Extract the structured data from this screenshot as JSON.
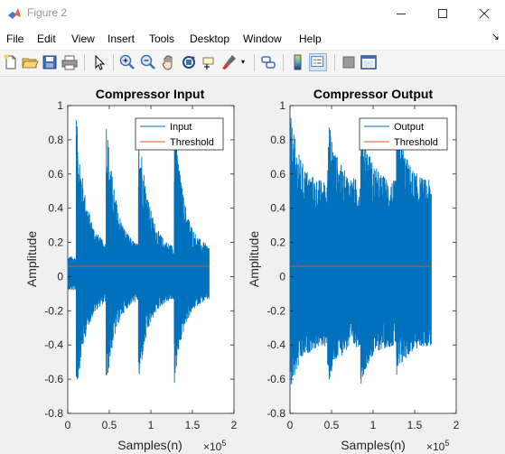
{
  "window": {
    "title": "Figure 2"
  },
  "menu": [
    "File",
    "Edit",
    "View",
    "Insert",
    "Tools",
    "Desktop",
    "Window",
    "Help"
  ],
  "toolbar": {
    "icons": [
      "new-figure-icon",
      "open-file-icon",
      "save-icon",
      "print-icon",
      "pointer-icon",
      "zoom-in-icon",
      "zoom-out-icon",
      "pan-icon",
      "rotate-icon",
      "data-cursor-icon",
      "brush-icon",
      "link-icon",
      "colorbar-icon",
      "legend-icon",
      "hide-plot-tools-icon",
      "show-plot-tools-icon"
    ]
  },
  "colors": {
    "series": "#0072bd",
    "threshold": "#d95319",
    "background": "#f0f0f0"
  },
  "chart_data": [
    {
      "type": "line",
      "title": "Compressor Input",
      "xlabel": "Samples(n)",
      "ylabel": "Amplitude",
      "x_exponent": "×10",
      "x_exponent_power": "5",
      "xlim": [
        0,
        2
      ],
      "ylim": [
        -0.8,
        1
      ],
      "xticks": [
        "0",
        "0.5",
        "1",
        "1.5",
        "2"
      ],
      "yticks": [
        "-0.8",
        "-0.6",
        "-0.4",
        "-0.2",
        "0",
        "0.2",
        "0.4",
        "0.6",
        "0.8",
        "1"
      ],
      "legend_position": "top-right",
      "series": [
        {
          "name": "Input",
          "x_end": 1.7,
          "burst_starts": [
            0.1,
            0.46,
            0.85,
            1.28
          ],
          "burst_peak_pos": [
            0.97,
            0.97,
            0.97,
            0.97
          ],
          "burst_peak_neg": [
            -0.72,
            -0.68,
            -0.66,
            -0.65
          ],
          "decay_floor_pos": 0.16,
          "decay_floor_neg": -0.12
        },
        {
          "name": "Threshold",
          "x": [
            0,
            1.7
          ],
          "y": [
            0.06,
            0.06
          ]
        }
      ]
    },
    {
      "type": "line",
      "title": "Compressor Output",
      "xlabel": "Samples(n)",
      "ylabel": "Amplitude",
      "x_exponent": "×10",
      "x_exponent_power": "5",
      "xlim": [
        0,
        2
      ],
      "ylim": [
        -0.8,
        1
      ],
      "xticks": [
        "0",
        "0.5",
        "1",
        "1.5",
        "2"
      ],
      "yticks": [
        "-0.8",
        "-0.6",
        "-0.4",
        "-0.2",
        "0",
        "0.2",
        "0.4",
        "0.6",
        "0.8",
        "1"
      ],
      "legend_position": "top-right",
      "series": [
        {
          "name": "Output",
          "x_end": 1.7,
          "burst_starts": [
            0.0,
            0.45,
            0.85,
            1.28
          ],
          "burst_peak_pos": [
            0.97,
            0.97,
            0.97,
            0.97
          ],
          "burst_peak_neg": [
            -0.72,
            -0.66,
            -0.64,
            -0.62
          ],
          "decay_floor_pos": 0.55,
          "decay_floor_neg": -0.4
        },
        {
          "name": "Threshold",
          "x": [
            0,
            1.7
          ],
          "y": [
            0.06,
            0.06
          ]
        }
      ]
    }
  ]
}
